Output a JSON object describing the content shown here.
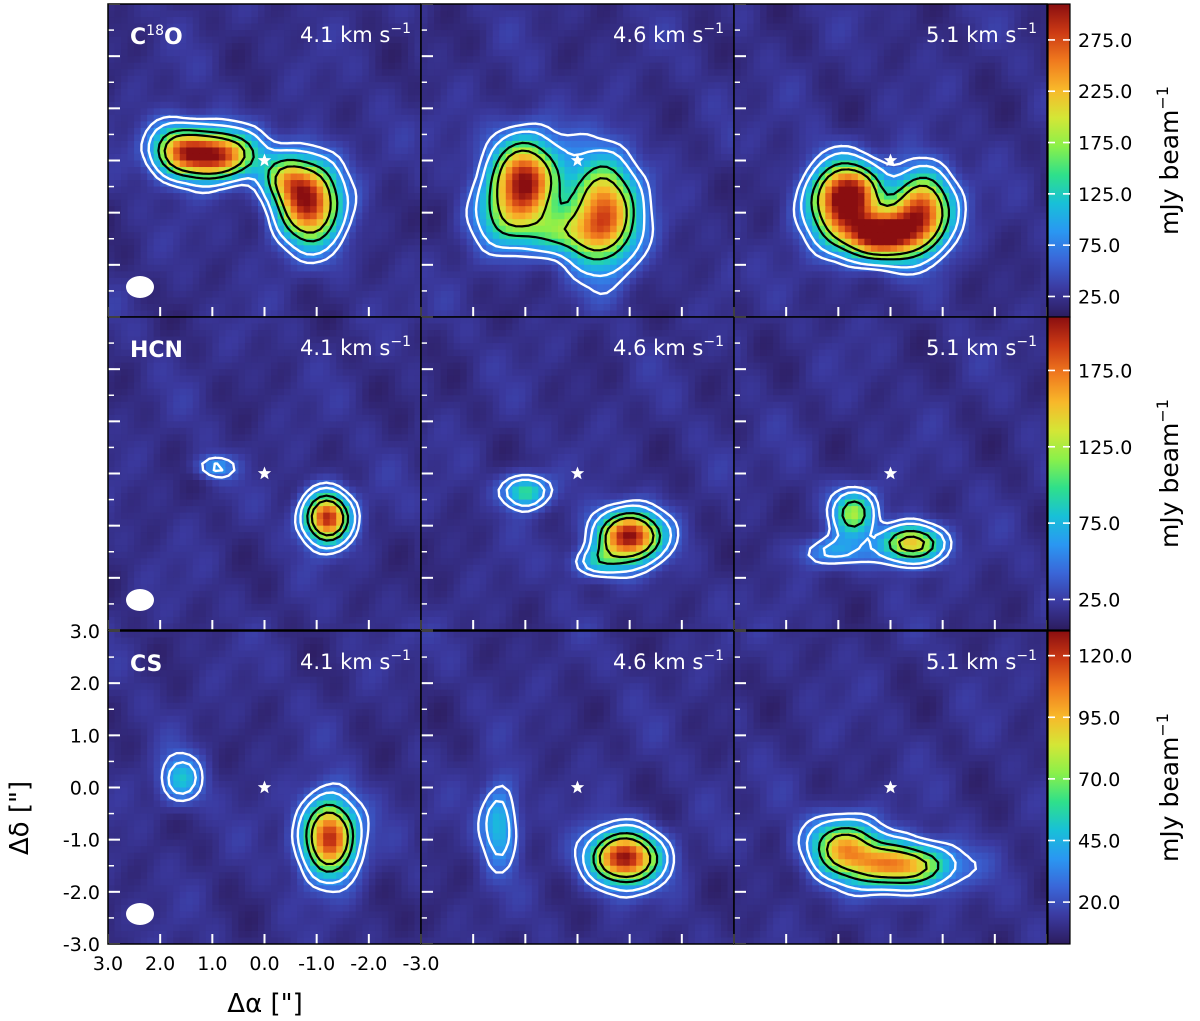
{
  "figure": {
    "colors": {
      "background": "#2a1a5e",
      "contour_outer": "#ffffff",
      "contour_inner": "#000000",
      "frame": "#000000",
      "tick": "#ffffff",
      "star": "#ffffff"
    },
    "colormap": [
      "#2c1c5e",
      "#3b3aa0",
      "#3a66d8",
      "#2a97f2",
      "#18c0d8",
      "#2fe08a",
      "#8af04a",
      "#d4e636",
      "#f8b82a",
      "#f07a1e",
      "#cc3a14",
      "#8a0e10"
    ],
    "beam_color": "#ffffff"
  },
  "chart_data": [
    {
      "type": "heatmap",
      "panel": "row1-col1",
      "molecule": "C",
      "molecule_sup": "18",
      "molecule_suffix": "O",
      "velocity": "4.1 km s",
      "velocity_sup": "−1",
      "peak": 285,
      "blobs": [
        {
          "x": 1.0,
          "y": 0.1,
          "sx": 0.55,
          "sy": 0.32,
          "amp": 0.95
        },
        {
          "x": 1.7,
          "y": 0.25,
          "sx": 0.35,
          "sy": 0.35,
          "amp": 0.4
        },
        {
          "x": -0.85,
          "y": -0.8,
          "sx": 0.42,
          "sy": 0.55,
          "amp": 0.9
        },
        {
          "x": -0.4,
          "y": -0.35,
          "sx": 0.3,
          "sy": 0.3,
          "amp": 0.35
        }
      ]
    },
    {
      "type": "heatmap",
      "panel": "row1-col2",
      "molecule": "",
      "velocity": "4.6 km s",
      "velocity_sup": "−1",
      "peak": 285,
      "blobs": [
        {
          "x": 1.0,
          "y": -0.35,
          "sx": 0.45,
          "sy": 0.55,
          "amp": 0.88
        },
        {
          "x": -0.5,
          "y": -1.0,
          "sx": 0.45,
          "sy": 0.7,
          "amp": 0.82
        },
        {
          "x": 0.3,
          "y": -1.4,
          "sx": 0.55,
          "sy": 0.3,
          "amp": 0.3
        },
        {
          "x": 1.4,
          "y": -1.1,
          "sx": 0.45,
          "sy": 0.45,
          "amp": 0.3
        }
      ]
    },
    {
      "type": "heatmap",
      "panel": "row1-col3",
      "molecule": "",
      "velocity": "5.1 km s",
      "velocity_sup": "−1",
      "peak": 285,
      "blobs": [
        {
          "x": 1.0,
          "y": -0.8,
          "sx": 0.42,
          "sy": 0.5,
          "amp": 0.8
        },
        {
          "x": 0.2,
          "y": -1.45,
          "sx": 0.5,
          "sy": 0.32,
          "amp": 0.95
        },
        {
          "x": -0.6,
          "y": -0.95,
          "sx": 0.4,
          "sy": 0.5,
          "amp": 0.85
        },
        {
          "x": 0.6,
          "y": -0.55,
          "sx": 0.35,
          "sy": 0.35,
          "amp": 0.4
        }
      ]
    },
    {
      "type": "heatmap",
      "panel": "row2-col1",
      "molecule": "HCN",
      "velocity": "4.1 km s",
      "velocity_sup": "−1",
      "peak": 195,
      "blobs": [
        {
          "x": -1.2,
          "y": -0.85,
          "sx": 0.3,
          "sy": 0.33,
          "amp": 0.9
        },
        {
          "x": 0.95,
          "y": 0.12,
          "sx": 0.25,
          "sy": 0.15,
          "amp": 0.22
        }
      ]
    },
    {
      "type": "heatmap",
      "panel": "row2-col2",
      "molecule": "",
      "velocity": "4.6 km s",
      "velocity_sup": "−1",
      "peak": 195,
      "blobs": [
        {
          "x": -1.0,
          "y": -1.2,
          "sx": 0.42,
          "sy": 0.33,
          "amp": 0.95
        },
        {
          "x": 1.0,
          "y": -0.35,
          "sx": 0.3,
          "sy": 0.22,
          "amp": 0.42
        },
        {
          "x": -0.4,
          "y": -1.7,
          "sx": 0.35,
          "sy": 0.2,
          "amp": 0.28
        }
      ]
    },
    {
      "type": "heatmap",
      "panel": "row2-col3",
      "molecule": "",
      "velocity": "5.1 km s",
      "velocity_sup": "−1",
      "peak": 195,
      "blobs": [
        {
          "x": -0.4,
          "y": -1.35,
          "sx": 0.4,
          "sy": 0.25,
          "amp": 0.68
        },
        {
          "x": 0.7,
          "y": -0.75,
          "sx": 0.28,
          "sy": 0.3,
          "amp": 0.5
        },
        {
          "x": 1.1,
          "y": -1.5,
          "sx": 0.45,
          "sy": 0.2,
          "amp": 0.22
        }
      ]
    },
    {
      "type": "heatmap",
      "panel": "row3-col1",
      "molecule": "CS",
      "velocity": "4.1 km s",
      "velocity_sup": "−1",
      "peak": 128,
      "blobs": [
        {
          "x": -1.25,
          "y": -0.95,
          "sx": 0.35,
          "sy": 0.5,
          "amp": 0.9
        },
        {
          "x": 1.6,
          "y": 0.15,
          "sx": 0.28,
          "sy": 0.32,
          "amp": 0.3
        }
      ]
    },
    {
      "type": "heatmap",
      "panel": "row3-col2",
      "molecule": "",
      "velocity": "4.6 km s",
      "velocity_sup": "−1",
      "peak": 128,
      "blobs": [
        {
          "x": -0.9,
          "y": -1.35,
          "sx": 0.45,
          "sy": 0.35,
          "amp": 0.95
        },
        {
          "x": 1.5,
          "y": -0.7,
          "sx": 0.25,
          "sy": 0.55,
          "amp": 0.32
        }
      ]
    },
    {
      "type": "heatmap",
      "panel": "row3-col3",
      "molecule": "",
      "velocity": "5.1 km s",
      "velocity_sup": "−1",
      "peak": 128,
      "blobs": [
        {
          "x": -0.15,
          "y": -1.5,
          "sx": 0.7,
          "sy": 0.3,
          "amp": 0.75
        },
        {
          "x": 0.9,
          "y": -1.1,
          "sx": 0.45,
          "sy": 0.35,
          "amp": 0.6
        }
      ]
    }
  ],
  "colorbars": [
    {
      "row": 1,
      "label": "mJy beam",
      "label_sup": "−1",
      "min": 5,
      "max": 310,
      "ticks": [
        25,
        75,
        125,
        175,
        225,
        275
      ],
      "tick_labels": [
        "25.0",
        "75.0",
        "125.0",
        "175.0",
        "225.0",
        "275.0"
      ]
    },
    {
      "row": 2,
      "label": "mJy beam",
      "label_sup": "−1",
      "min": 5,
      "max": 210,
      "ticks": [
        25,
        75,
        125,
        175
      ],
      "tick_labels": [
        "25.0",
        "75.0",
        "125.0",
        "175.0"
      ]
    },
    {
      "row": 3,
      "label": "mJy beam",
      "label_sup": "−1",
      "min": 3,
      "max": 130,
      "ticks": [
        20,
        45,
        70,
        95,
        120
      ],
      "tick_labels": [
        "20.0",
        "45.0",
        "70.0",
        "95.0",
        "120.0"
      ]
    }
  ],
  "axes": {
    "xlabel": "Δα [\"]",
    "ylabel": "Δδ [\"]",
    "xlim": [
      3.0,
      -3.0
    ],
    "ylim": [
      -3.0,
      3.0
    ],
    "xticks": [
      3,
      2,
      1,
      0,
      -1,
      -2,
      -3
    ],
    "xtick_labels": [
      "3.0",
      "2.0",
      "1.0",
      "0.0",
      "-1.0",
      "-2.0",
      "-3.0"
    ],
    "yticks": [
      3,
      2,
      1,
      0,
      -1,
      -2,
      -3
    ],
    "ytick_labels": [
      "3.0",
      "2.0",
      "1.0",
      "0.0",
      "-1.0",
      "-2.0",
      "-3.0"
    ]
  }
}
